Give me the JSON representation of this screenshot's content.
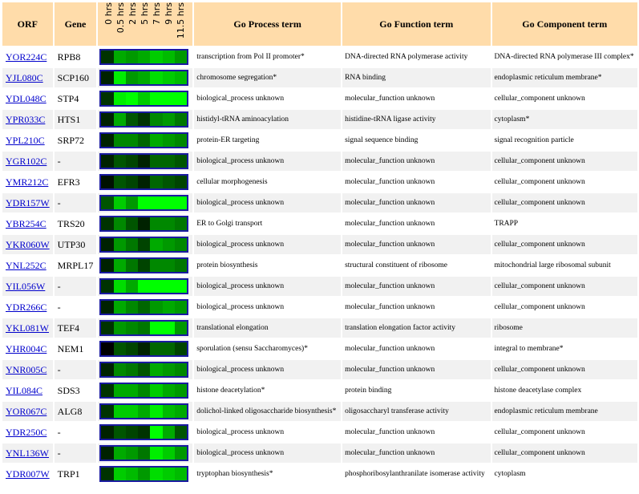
{
  "headers": {
    "orf": "ORF",
    "gene": "Gene",
    "timepoints": [
      "0 hrs",
      "0.5 hrs",
      "2 hrs",
      "5 hrs",
      "7 hrs",
      "9 hrs",
      "11.5 hrs"
    ],
    "process": "Go Process term",
    "function": "Go Function term",
    "component": "Go Component term"
  },
  "colors": {
    "header_bg": "#ffdcaa",
    "link": "#0000cc",
    "alt_row": "#f1f1f1",
    "heatmap_border": "#1a1aa0"
  },
  "rows": [
    {
      "orf": "YOR224C",
      "gene": "RPB8",
      "heat": [
        "#003300",
        "#00aa00",
        "#009900",
        "#00aa00",
        "#00cc00",
        "#00bb00",
        "#009900"
      ],
      "process": "transcription from Pol II promoter*",
      "function": "DNA-directed RNA polymerase activity",
      "component": "DNA-directed RNA polymerase III complex*"
    },
    {
      "orf": "YJL080C",
      "gene": "SCP160",
      "heat": [
        "#002200",
        "#00ee00",
        "#009900",
        "#00aa00",
        "#00dd00",
        "#00cc00",
        "#00bb00"
      ],
      "process": "chromosome segregation*",
      "function": "RNA binding",
      "component": "endoplasmic reticulum membrane*"
    },
    {
      "orf": "YDL048C",
      "gene": "STP4",
      "heat": [
        "#003300",
        "#00ee00",
        "#00ff00",
        "#00cc00",
        "#00ff00",
        "#00ff00",
        "#00ff00"
      ],
      "process": "biological_process unknown",
      "function": "molecular_function unknown",
      "component": "cellular_component unknown"
    },
    {
      "orf": "YPR033C",
      "gene": "HTS1",
      "heat": [
        "#002200",
        "#00aa00",
        "#005500",
        "#003300",
        "#008800",
        "#009900",
        "#007700"
      ],
      "process": "histidyl-tRNA aminoacylation",
      "function": "histidine-tRNA ligase activity",
      "component": "cytoplasm*"
    },
    {
      "orf": "YPL210C",
      "gene": "SRP72",
      "heat": [
        "#002200",
        "#008800",
        "#008800",
        "#006600",
        "#00aa00",
        "#009900",
        "#008800"
      ],
      "process": "protein-ER targeting",
      "function": "signal sequence binding",
      "component": "signal recognition particle"
    },
    {
      "orf": "YGR102C",
      "gene": "-",
      "heat": [
        "#002200",
        "#005500",
        "#004400",
        "#002200",
        "#006600",
        "#006600",
        "#005500"
      ],
      "process": "biological_process unknown",
      "function": "molecular_function unknown",
      "component": "cellular_component unknown"
    },
    {
      "orf": "YMR212C",
      "gene": "EFR3",
      "heat": [
        "#001100",
        "#005500",
        "#004400",
        "#002200",
        "#006600",
        "#005500",
        "#004400"
      ],
      "process": "cellular morphogenesis",
      "function": "molecular_function unknown",
      "component": "cellular_component unknown"
    },
    {
      "orf": "YDR157W",
      "gene": "-",
      "heat": [
        "#005500",
        "#00cc00",
        "#009900",
        "#00ff00",
        "#00ff00",
        "#00ff00",
        "#00ff00"
      ],
      "process": "biological_process unknown",
      "function": "molecular_function unknown",
      "component": "cellular_component unknown"
    },
    {
      "orf": "YBR254C",
      "gene": "TRS20",
      "heat": [
        "#003300",
        "#008800",
        "#005500",
        "#002200",
        "#008800",
        "#008800",
        "#007700"
      ],
      "process": "ER to Golgi transport",
      "function": "molecular_function unknown",
      "component": "TRAPP"
    },
    {
      "orf": "YKR060W",
      "gene": "UTP30",
      "heat": [
        "#002200",
        "#009900",
        "#007700",
        "#004400",
        "#00aa00",
        "#009900",
        "#008800"
      ],
      "process": "biological_process unknown",
      "function": "molecular_function unknown",
      "component": "cellular_component unknown"
    },
    {
      "orf": "YNL252C",
      "gene": "MRPL17",
      "heat": [
        "#002200",
        "#00aa00",
        "#007700",
        "#004400",
        "#008800",
        "#008800",
        "#007700"
      ],
      "process": "protein biosynthesis",
      "function": "structural constituent of ribosome",
      "component": "mitochondrial large ribosomal subunit"
    },
    {
      "orf": "YIL056W",
      "gene": "-",
      "heat": [
        "#003300",
        "#00dd00",
        "#00aa00",
        "#00ff00",
        "#00ff00",
        "#00ff00",
        "#00ff00"
      ],
      "process": "biological_process unknown",
      "function": "molecular_function unknown",
      "component": "cellular_component unknown"
    },
    {
      "orf": "YDR266C",
      "gene": "-",
      "heat": [
        "#002200",
        "#00aa00",
        "#008800",
        "#006600",
        "#009900",
        "#00aa00",
        "#009900"
      ],
      "process": "biological_process unknown",
      "function": "molecular_function unknown",
      "component": "cellular_component unknown"
    },
    {
      "orf": "YKL081W",
      "gene": "TEF4",
      "heat": [
        "#003300",
        "#009900",
        "#008800",
        "#007700",
        "#00ff00",
        "#00ff00",
        "#009900"
      ],
      "process": "translational elongation",
      "function": "translation elongation factor activity",
      "component": "ribosome"
    },
    {
      "orf": "YHR004C",
      "gene": "NEM1",
      "heat": [
        "#000000",
        "#005500",
        "#004400",
        "#002200",
        "#006600",
        "#006600",
        "#004400"
      ],
      "process": "sporulation (sensu Saccharomyces)*",
      "function": "molecular_function unknown",
      "component": "integral to membrane*"
    },
    {
      "orf": "YNR005C",
      "gene": "-",
      "heat": [
        "#002200",
        "#008800",
        "#007700",
        "#005500",
        "#00aa00",
        "#009900",
        "#008800"
      ],
      "process": "biological_process unknown",
      "function": "molecular_function unknown",
      "component": "cellular_component unknown"
    },
    {
      "orf": "YIL084C",
      "gene": "SDS3",
      "heat": [
        "#003300",
        "#00aa00",
        "#00aa00",
        "#008800",
        "#00cc00",
        "#00aa00",
        "#009900"
      ],
      "process": "histone deacetylation*",
      "function": "protein binding",
      "component": "histone deacetylase complex"
    },
    {
      "orf": "YOR067C",
      "gene": "ALG8",
      "heat": [
        "#003300",
        "#00cc00",
        "#00cc00",
        "#00aa00",
        "#00ee00",
        "#00bb00",
        "#00aa00"
      ],
      "process": "dolichol-linked oligosaccharide biosynthesis*",
      "function": "oligosaccharyl transferase activity",
      "component": "endoplasmic reticulum membrane"
    },
    {
      "orf": "YDR250C",
      "gene": "-",
      "heat": [
        "#002200",
        "#005500",
        "#004400",
        "#003300",
        "#00ff00",
        "#00aa00",
        "#005500"
      ],
      "process": "biological_process unknown",
      "function": "molecular_function unknown",
      "component": "cellular_component unknown"
    },
    {
      "orf": "YNL136W",
      "gene": "-",
      "heat": [
        "#002200",
        "#00aa00",
        "#009900",
        "#007700",
        "#00ee00",
        "#00cc00",
        "#009900"
      ],
      "process": "biological_process unknown",
      "function": "molecular_function unknown",
      "component": "cellular_component unknown"
    },
    {
      "orf": "YDR007W",
      "gene": "TRP1",
      "heat": [
        "#003300",
        "#00cc00",
        "#00bb00",
        "#009900",
        "#00dd00",
        "#00cc00",
        "#00bb00"
      ],
      "process": "tryptophan biosynthesis*",
      "function": "phosphoribosylanthranilate isomerase activity",
      "component": "cytoplasm"
    }
  ]
}
